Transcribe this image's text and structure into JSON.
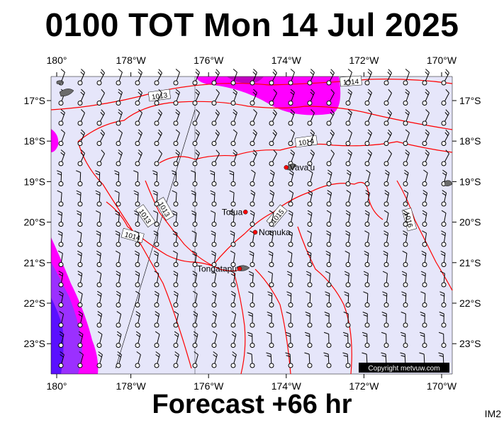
{
  "title": "0100 TOT Mon 14 Jul 2025",
  "footer": "Forecast +66 hr",
  "corner_tag": "IM2",
  "copyright": "Copyright metvuw.com",
  "axes": {
    "lon_ticks": [
      "180°",
      "178°W",
      "176°W",
      "174°W",
      "172°W",
      "170°W"
    ],
    "lat_ticks": [
      "17°S",
      "18°S",
      "19°S",
      "20°S",
      "21°S",
      "22°S",
      "23°S"
    ]
  },
  "places": [
    {
      "name": "Vava'u",
      "lon": -174.0,
      "lat": -18.65
    },
    {
      "name": "Tofua",
      "lon": -175.05,
      "lat": -19.75
    },
    {
      "name": "Nomuka",
      "lon": -174.8,
      "lat": -20.25
    },
    {
      "name": "Tongatapu",
      "lon": -175.2,
      "lat": -21.15
    }
  ],
  "isobar_labels": [
    "1013",
    "1014",
    "1013",
    "1014",
    "1013",
    "1014",
    "1015",
    "1016"
  ],
  "colors": {
    "ocean": "#e6e6fa",
    "wind_magenta": "#ff00ff",
    "wind_violet": "#8a2be2",
    "wind_blue": "#4b00ff",
    "isobar": "#ff0000",
    "place_marker": "#ff0000"
  },
  "legend": {}
}
